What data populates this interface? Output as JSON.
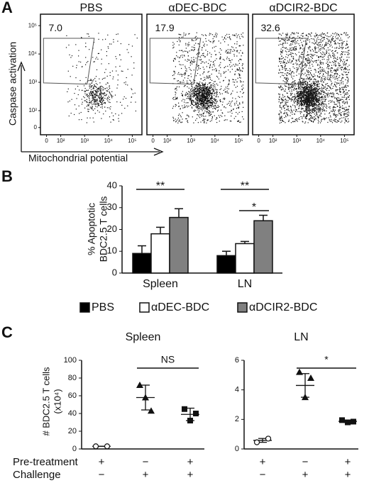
{
  "panel_labels": {
    "a": "A",
    "b": "B",
    "c": "C"
  },
  "chart_data": [
    {
      "type": "flow",
      "titles": [
        "PBS",
        "αDEC-BDC",
        "αDCIR2-BDC"
      ],
      "values": [
        7.0,
        17.9,
        32.6
      ],
      "value_labels": [
        "7.0",
        "17.9",
        "32.6"
      ],
      "xlabel": "Mitochondrial potential",
      "ylabel": "Caspase activation",
      "xticks": [
        0,
        {
          "value": 100,
          "label": "10²"
        },
        {
          "value": 1000,
          "label": "10³"
        },
        {
          "value": 10000,
          "label": "10⁴"
        },
        {
          "value": 100000,
          "label": "10⁵"
        }
      ],
      "yticks": [
        0,
        {
          "value": 100,
          "label": "10²"
        },
        {
          "value": 1000,
          "label": "10³"
        },
        {
          "value": 10000,
          "label": "10⁴"
        },
        {
          "value": 100000,
          "label": "10⁵"
        }
      ]
    },
    {
      "type": "bar",
      "categories": [
        "Spleen",
        "LN"
      ],
      "series": [
        {
          "name": "PBS",
          "color": "#000000",
          "values": [
            9,
            8
          ],
          "errors": [
            3.5,
            2
          ]
        },
        {
          "name": "αDEC-BDC",
          "color": "#ffffff",
          "values": [
            18,
            13.5
          ],
          "errors": [
            3,
            1
          ]
        },
        {
          "name": "αDCIR2-BDC",
          "color": "#808080",
          "values": [
            25.5,
            24
          ],
          "errors": [
            4,
            2.5
          ]
        }
      ],
      "ylabel": [
        "% Apoptotic",
        "BDC2.5 T cells"
      ],
      "ylim": [
        0,
        40
      ],
      "yticks": [
        0,
        10,
        20,
        30,
        40
      ],
      "annotations": [
        {
          "text": "**",
          "group": 0,
          "from": 0,
          "to": 2
        },
        {
          "text": "**",
          "group": 1,
          "from": 0,
          "to": 2
        },
        {
          "text": "*",
          "group": 1,
          "from": 1,
          "to": 2
        }
      ]
    },
    {
      "type": "dot",
      "title": "Spleen",
      "ylabel": [
        "# BDC2.5 T cells",
        "(x10⁴)"
      ],
      "ylim": [
        0,
        100
      ],
      "yticks": [
        0,
        20,
        40,
        60,
        80,
        100
      ],
      "groups": [
        {
          "marker": "circle",
          "values": [
            3,
            3
          ],
          "mean": 3,
          "sem": 0
        },
        {
          "marker": "triangle",
          "values": [
            72,
            58,
            43
          ],
          "mean": 58,
          "sem": 14
        },
        {
          "marker": "square",
          "values": [
            45,
            32,
            40
          ],
          "mean": 39,
          "sem": 7
        }
      ],
      "annotation": {
        "text": "NS",
        "from": 1,
        "to": 2
      }
    },
    {
      "type": "dot",
      "title": "LN",
      "ylim": [
        0,
        6
      ],
      "yticks": [
        0,
        2,
        4,
        6
      ],
      "groups": [
        {
          "marker": "circle",
          "values": [
            0.45,
            0.7
          ],
          "mean": 0.58,
          "sem": 0.13
        },
        {
          "marker": "triangle",
          "values": [
            5.2,
            3.5,
            4.8
          ],
          "mean": 4.3,
          "sem": 0.8
        },
        {
          "marker": "square",
          "values": [
            1.95,
            1.8,
            1.85
          ],
          "mean": 1.87,
          "sem": 0.08
        }
      ],
      "annotation": {
        "text": "*",
        "from": 1,
        "to": 2
      }
    }
  ],
  "treatment": {
    "rows": [
      {
        "label": "Pre-treatment",
        "signs": [
          "+",
          "−",
          "+"
        ]
      },
      {
        "label": "Challenge",
        "signs": [
          "−",
          "+",
          "+"
        ]
      }
    ]
  }
}
